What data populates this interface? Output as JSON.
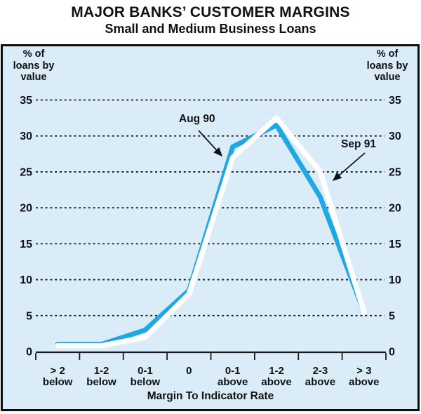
{
  "title": "MAJOR BANKS’ CUSTOMER MARGINS",
  "subtitle": "Small and Medium Business Loans",
  "y_axis_unit_lines": [
    "% of",
    "loans by",
    "value"
  ],
  "chart_data": {
    "type": "line",
    "title": "MAJOR BANKS’ CUSTOMER MARGINS",
    "subtitle": "Small and Medium Business Loans",
    "xlabel": "Margin To Indicator Rate",
    "ylabel": "% of loans by value",
    "ylim": [
      0,
      35
    ],
    "yticks": [
      0,
      5,
      10,
      15,
      20,
      25,
      30,
      35
    ],
    "grid": "dotted-horizontal",
    "grid_color": "#1a1a1a",
    "background": "#d9ecf8",
    "frame_color": "#0d0d0d",
    "categories": [
      [
        "> 2",
        "below"
      ],
      [
        "1-2",
        "below"
      ],
      [
        "0-1",
        "below"
      ],
      [
        "0"
      ],
      [
        "0-1",
        "above"
      ],
      [
        "1-2",
        "above"
      ],
      [
        "2-3",
        "above"
      ],
      [
        "> 3",
        "above"
      ]
    ],
    "series": [
      {
        "name": "Aug 90",
        "color": "#1fa8e1",
        "values": [
          1,
          1,
          3,
          8.5,
          28.5,
          31.5,
          21.5,
          5.5
        ]
      },
      {
        "name": "Sep 91",
        "color": "#ffffff",
        "values": [
          0.8,
          0.8,
          2,
          8,
          27,
          32.5,
          25,
          5.5
        ]
      }
    ],
    "annotations": [
      {
        "text": "Aug 90",
        "points_to_series": "Aug 90"
      },
      {
        "text": "Sep 91",
        "points_to_series": "Sep 91"
      }
    ]
  }
}
